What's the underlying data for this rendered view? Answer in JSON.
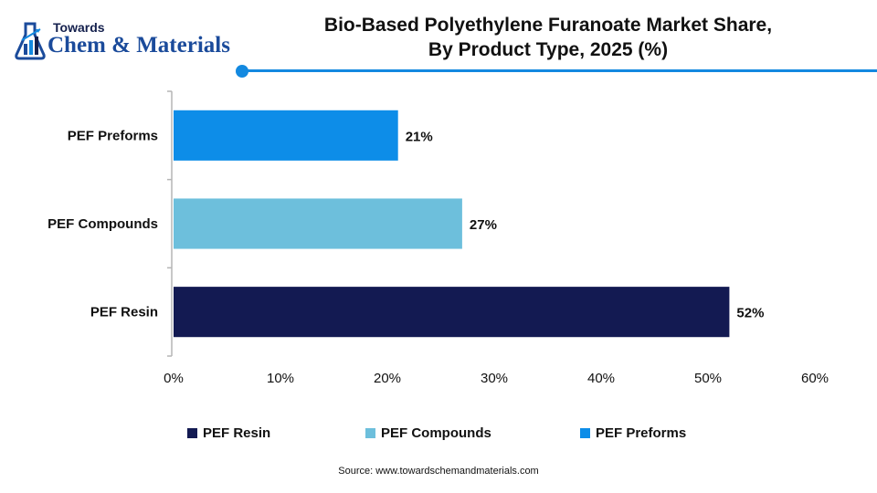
{
  "brand": {
    "line1": "Towards",
    "line2": "Chem & Materials"
  },
  "header": {
    "title_line1": "Bio-Based Polyethylene Furanoate Market Share,",
    "title_line2": "By Product Type, 2025 (%)"
  },
  "colors": {
    "accent": "#1389e0",
    "resin": "#131a52",
    "compounds": "#6dbfdc",
    "preforms": "#0d8de8"
  },
  "chart_data": {
    "type": "bar",
    "orientation": "horizontal",
    "title": "Bio-Based Polyethylene Furanoate Market Share, By Product Type, 2025 (%)",
    "categories": [
      "PEF Preforms",
      "PEF Compounds",
      "PEF Resin"
    ],
    "values": [
      21,
      27,
      52
    ],
    "data_labels": [
      "21%",
      "27%",
      "52%"
    ],
    "bar_colors": [
      "#0d8de8",
      "#6dbfdc",
      "#131a52"
    ],
    "xlim": [
      0,
      60
    ],
    "x_ticks": [
      0,
      10,
      20,
      30,
      40,
      50,
      60
    ],
    "x_tick_labels": [
      "0%",
      "10%",
      "20%",
      "30%",
      "40%",
      "50%",
      "60%"
    ],
    "xlabel": "",
    "ylabel": "",
    "grid": false,
    "legend_position": "bottom",
    "legend": [
      {
        "name": "PEF Resin",
        "color": "#131a52"
      },
      {
        "name": "PEF Compounds",
        "color": "#6dbfdc"
      },
      {
        "name": "PEF Preforms",
        "color": "#0d8de8"
      }
    ]
  },
  "source": "Source: www.towardschemandmaterials.com"
}
